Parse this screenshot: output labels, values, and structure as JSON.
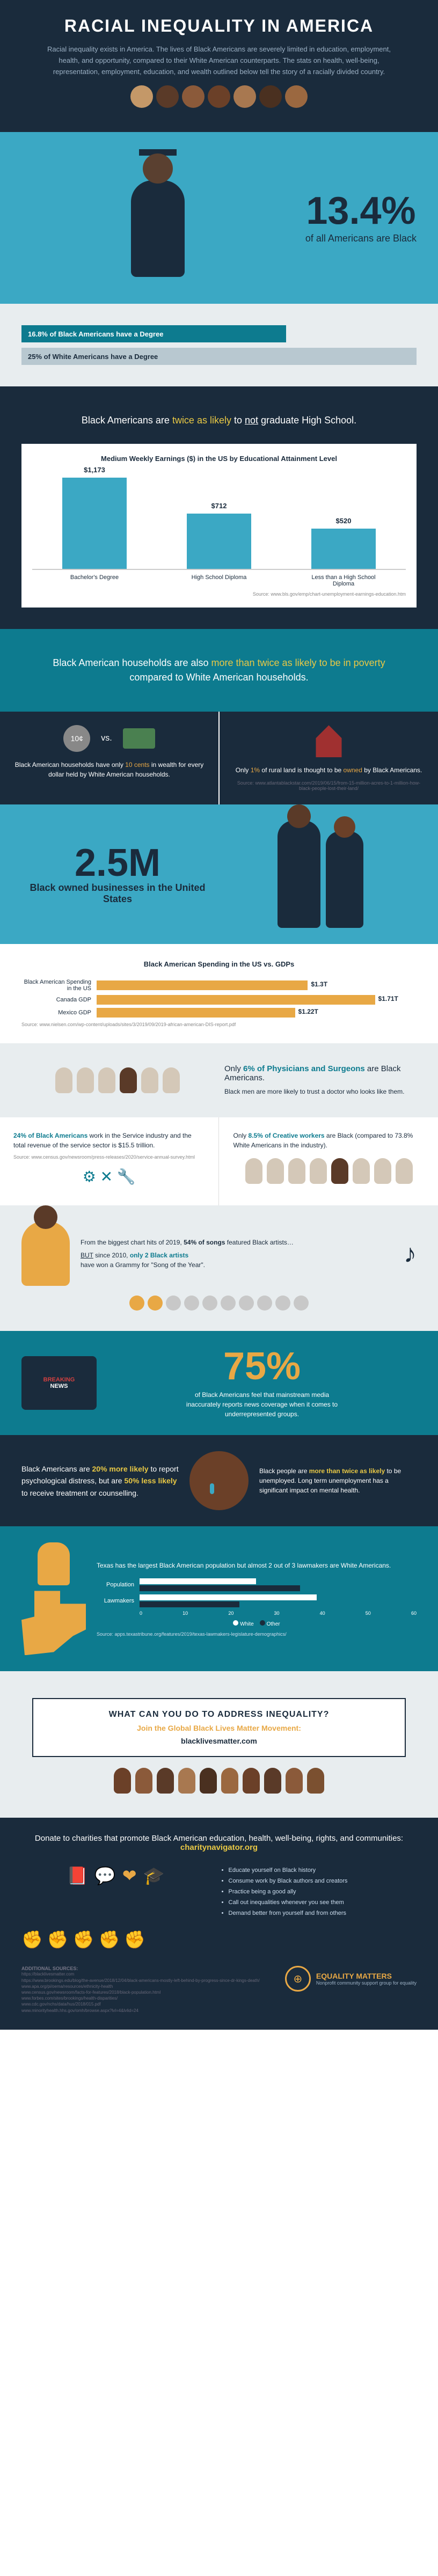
{
  "header": {
    "title": "RACIAL INEQUALITY IN AMERICA",
    "intro": "Racial inequality exists in America. The lives of Black Americans are severely limited in education, employment, health, and opportunity, compared to their White American counterparts. The stats on health, well-being, representation, employment, education, and wealth outlined below tell the story of a racially divided country."
  },
  "pop": {
    "stat": "13.4%",
    "sub": "of all Americans are Black"
  },
  "degree": {
    "black": "16.8% of Black Americans have a Degree",
    "white": "25% of White Americans have a Degree",
    "black_pct": 67,
    "white_pct": 100
  },
  "highschool": {
    "line": "Black Americans are twice as likely to not graduate High School.",
    "hl1": "twice as likely",
    "hl2": "not"
  },
  "earnings": {
    "title": "Medium Weekly Earnings ($) in the US by Educational Attainment Level",
    "bars": [
      {
        "label": "Bachelor's Degree",
        "value": "$1,173",
        "h": 170
      },
      {
        "label": "High School Diploma",
        "value": "$712",
        "h": 103
      },
      {
        "label": "Less than a High School Diploma",
        "value": "$520",
        "h": 75
      }
    ],
    "source": "Source: www.bls.gov/emp/chart-unemployment-earnings-education.htm"
  },
  "poverty": {
    "line_a": "Black American households are also ",
    "hl": "more than twice as likely to be in poverty",
    "line_b": " compared to White American households."
  },
  "wealth": {
    "vs": "vs.",
    "text_a": "Black American households have only ",
    "hl": "10 cents",
    "text_b": " in wealth for every dollar held by White American households."
  },
  "land": {
    "text_a": "Only ",
    "hl": "1%",
    "text_b": " of rural land is thought to be ",
    "hl2": "owned",
    "text_c": " by Black Americans.",
    "source": "Source: www.atlantablackstar.com/2019/06/15/from-15-million-acres-to-1-million-how-black-people-lost-their-land/"
  },
  "biz": {
    "stat": "2.5M",
    "sub": "Black owned businesses in the United States"
  },
  "spending": {
    "title": "Black American Spending in the US vs. GDPs",
    "rows": [
      {
        "label": "Black American Spending in the US",
        "value": "$1.3T",
        "w": 66
      },
      {
        "label": "Canada GDP",
        "value": "$1.71T",
        "w": 87
      },
      {
        "label": "Mexico GDP",
        "value": "$1.22T",
        "w": 62
      }
    ],
    "source": "Source: www.nielsen.com/wp-content/uploads/sites/3/2019/09/2019-african-american-DIS-report.pdf"
  },
  "doctors": {
    "hl": "6% of Physicians and Surgeons",
    "text_a": "Only ",
    "text_b": " are Black Americans.",
    "sub": "Black men are more likely to trust a doctor who looks like them."
  },
  "service": {
    "hl": "24% of Black Americans",
    "text": " work in the Service industry and the total revenue of the service sector is $15.5 trillion.",
    "source": "Source: www.census.gov/newsroom/press-releases/2020/service-annual-survey.html"
  },
  "creative": {
    "hl": "8.5% of Creative workers",
    "text_a": "Only ",
    "text_b": " are Black (compared to 73.8% White Americans in the industry)."
  },
  "music": {
    "line1_a": "From the biggest chart hits of 2019, ",
    "line1_hl": "54% of songs",
    "line1_b": " featured Black artists…",
    "line2_a": "BUT",
    "line2_b": " since 2010, ",
    "line2_hl": "only 2 Black artists",
    "line2_c": " have won a Grammy for \"Song of the Year\"."
  },
  "media": {
    "stat": "75%",
    "text": "of Black Americans feel that mainstream media inaccurately reports news coverage when it comes to underrepresented groups."
  },
  "mental": {
    "text_a": "Black Americans are ",
    "hl1": "20% more likely",
    "text_b": " to report psychological distress, but are ",
    "hl2": "50% less likely",
    "text_c": " to receive treatment or counselling."
  },
  "unemp": {
    "text_a": "Black people are ",
    "hl": "more than twice as likely",
    "text_b": " to be unemployed. Long term unemployment has a significant impact on mental health."
  },
  "texas": {
    "text": "Texas has the largest Black American population but almost 2 out of 3 lawmakers are White Americans.",
    "rows": [
      {
        "label": "Population",
        "white": 42,
        "other": 58
      },
      {
        "label": "Lawmakers",
        "white": 64,
        "other": 36
      }
    ],
    "ticks": [
      "0",
      "10",
      "20",
      "30",
      "40",
      "50",
      "60"
    ],
    "legend": [
      "White",
      "Other"
    ],
    "source": "Source: apps.texastribune.org/features/2019/texas-lawmakers-legislature-demographics/"
  },
  "cta": {
    "title": "WHAT CAN YOU DO TO ADDRESS INEQUALITY?",
    "sub": "Join the Global Black Lives Matter Movement:",
    "link": "blacklivesmatter.com"
  },
  "donate": {
    "text": "Donate to charities that promote Black American education, health, well-being, rights, and communities: ",
    "link": "charitynavigator.org",
    "bullets": [
      "Educate yourself on Black history",
      "Consume work by Black authors and creators",
      "Practice being a good ally",
      "Call out inequalities whenever you see them",
      "Demand better from yourself and from others"
    ]
  },
  "footer": {
    "sources_label": "ADDITIONAL SOURCES:",
    "sources": "https://blacklivesmatter.com\nhttps://www.brookings.edu/blog/the-avenue/2018/12/04/black-americans-mostly-left-behind-by-progress-since-dr-kings-death/\nwww.apa.org/pi/oema/resources/ethnicity-health\nwww.census.gov/newsroom/facts-for-features/2018/black-population.html\nwww.forbes.com/sites/brookings/health-disparities/\nwww.cdc.gov/nchs/data/hus/2018/015.pdf\nwww.minorityhealth.hhs.gov/omh/browse.aspx?lvl=4&lvlid=24",
    "brand": "EQUALITY MATTERS",
    "tagline": "Nonprofit community support group for equality"
  },
  "colors": {
    "dark": "#1a2b3c",
    "teal": "#0d7b8f",
    "cyan": "#3ba8c4",
    "orange": "#e8a845",
    "light": "#e8edef"
  }
}
